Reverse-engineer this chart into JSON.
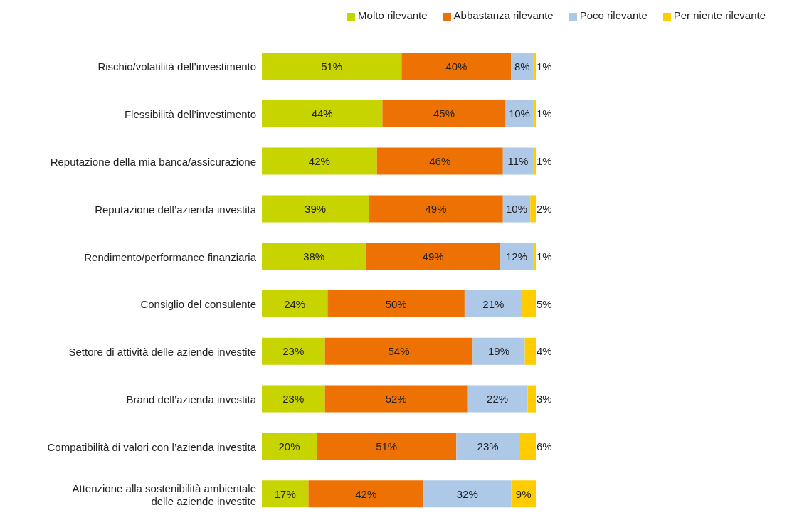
{
  "chart_data": {
    "type": "bar",
    "orientation": "horizontal",
    "stacked": true,
    "legend": "top right",
    "marker": "square",
    "categories": [
      "Rischio/volatilità dell’investimento",
      "Flessibilità dell’investimento",
      "Reputazione della mia banca/assicurazione",
      "Reputazione dell’azienda investita",
      "Rendimento/performance finanziaria",
      "Consiglio del consulente",
      "Settore di attività delle aziende investite",
      "Brand dell’azienda investita",
      "Compatibilità di valori con l’azienda investita",
      "Attenzione alla sostenibilità ambientale\ndelle aziende investite"
    ],
    "series": [
      {
        "name": "Molto rilevante",
        "color": "#c8d400",
        "values": [
          51,
          44,
          42,
          39,
          38,
          24,
          23,
          23,
          20,
          17
        ],
        "value_labels": [
          "51%",
          "44%",
          "42%",
          "39%",
          "38%",
          "24%",
          "23%",
          "23%",
          "20%",
          "17%"
        ]
      },
      {
        "name": "Abbastanza rilevante",
        "color": "#ee7203",
        "values": [
          40,
          45,
          46,
          49,
          49,
          50,
          54,
          52,
          51,
          42
        ],
        "value_labels": [
          "40%",
          "45%",
          "46%",
          "49%",
          "49%",
          "50%",
          "54%",
          "52%",
          "51%",
          "42%"
        ]
      },
      {
        "name": "Poco rilevante",
        "color": "#aec8e8",
        "values": [
          8,
          10,
          11,
          10,
          12,
          21,
          19,
          22,
          23,
          32
        ],
        "value_labels": [
          "8%",
          "10%",
          "11%",
          "10%",
          "12%",
          "21%",
          "19%",
          "22%",
          "23%",
          "32%"
        ]
      },
      {
        "name": "Per niente rilevante",
        "color": "#ffcc00",
        "values": [
          1,
          1,
          1,
          2,
          1,
          5,
          4,
          3,
          6,
          9
        ],
        "value_labels": [
          "1%",
          "1%",
          "1%",
          "2%",
          "1%",
          "5%",
          "4%",
          "3%",
          "6%",
          "9%"
        ]
      }
    ]
  }
}
